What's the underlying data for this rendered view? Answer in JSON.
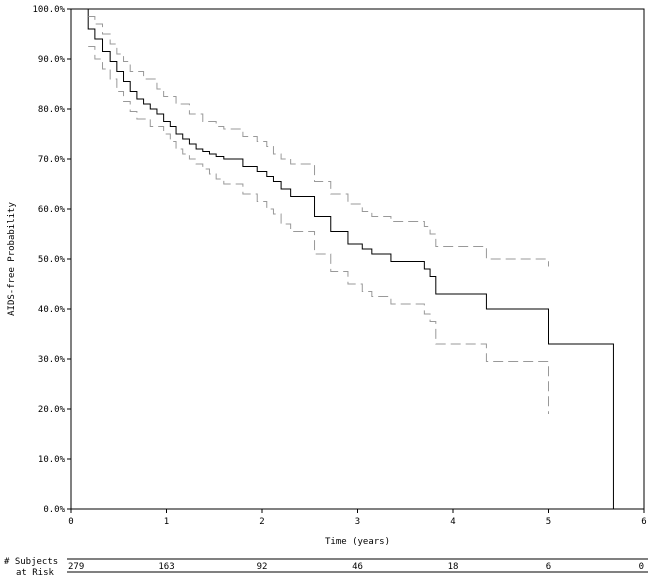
{
  "chart_data": {
    "type": "line",
    "title": "",
    "xlabel": "Time (years)",
    "ylabel": "AIDS-free Probability",
    "xlim": [
      0,
      6
    ],
    "ylim": [
      0,
      1
    ],
    "x_ticks": [
      0,
      1,
      2,
      3,
      4,
      5,
      6
    ],
    "x_tick_labels": [
      "0",
      "1",
      "2",
      "3",
      "4",
      "5",
      "6"
    ],
    "y_ticks": [
      0,
      0.1,
      0.2,
      0.3,
      0.4,
      0.5,
      0.6,
      0.7,
      0.8,
      0.9,
      1.0
    ],
    "y_tick_labels": [
      "0.0%",
      "10.0%",
      "20.0%",
      "30.0%",
      "40.0%",
      "50.0%",
      "60.0%",
      "70.0%",
      "80.0%",
      "90.0%",
      "100.0%"
    ],
    "grid": false,
    "legend": "none",
    "series": [
      {
        "style": "solid",
        "color": "#000000",
        "steps": [
          [
            0,
            1.0
          ],
          [
            0.18,
            0.96
          ],
          [
            0.25,
            0.94
          ],
          [
            0.33,
            0.915
          ],
          [
            0.41,
            0.895
          ],
          [
            0.48,
            0.875
          ],
          [
            0.55,
            0.855
          ],
          [
            0.62,
            0.835
          ],
          [
            0.69,
            0.82
          ],
          [
            0.76,
            0.81
          ],
          [
            0.83,
            0.8
          ],
          [
            0.9,
            0.79
          ],
          [
            0.97,
            0.775
          ],
          [
            1.04,
            0.765
          ],
          [
            1.1,
            0.75
          ],
          [
            1.17,
            0.74
          ],
          [
            1.24,
            0.73
          ],
          [
            1.31,
            0.72
          ],
          [
            1.38,
            0.715
          ],
          [
            1.45,
            0.71
          ],
          [
            1.52,
            0.705
          ],
          [
            1.6,
            0.7
          ],
          [
            1.8,
            0.685
          ],
          [
            1.95,
            0.675
          ],
          [
            2.05,
            0.665
          ],
          [
            2.12,
            0.655
          ],
          [
            2.2,
            0.64
          ],
          [
            2.3,
            0.625
          ],
          [
            2.55,
            0.585
          ],
          [
            2.72,
            0.555
          ],
          [
            2.9,
            0.53
          ],
          [
            3.05,
            0.52
          ],
          [
            3.15,
            0.51
          ],
          [
            3.35,
            0.495
          ],
          [
            3.7,
            0.48
          ],
          [
            3.76,
            0.465
          ],
          [
            3.82,
            0.43
          ],
          [
            4.35,
            0.4
          ],
          [
            5.0,
            0.33
          ],
          [
            5.68,
            0.0
          ]
        ]
      },
      {
        "style": "dashed",
        "color": "#999999",
        "steps": [
          [
            0.18,
            0.985
          ],
          [
            0.25,
            0.97
          ],
          [
            0.33,
            0.95
          ],
          [
            0.41,
            0.93
          ],
          [
            0.48,
            0.91
          ],
          [
            0.55,
            0.895
          ],
          [
            0.62,
            0.875
          ],
          [
            0.76,
            0.86
          ],
          [
            0.9,
            0.84
          ],
          [
            0.97,
            0.825
          ],
          [
            1.1,
            0.81
          ],
          [
            1.24,
            0.79
          ],
          [
            1.38,
            0.775
          ],
          [
            1.52,
            0.765
          ],
          [
            1.6,
            0.76
          ],
          [
            1.8,
            0.745
          ],
          [
            1.95,
            0.735
          ],
          [
            2.05,
            0.725
          ],
          [
            2.12,
            0.71
          ],
          [
            2.2,
            0.7
          ],
          [
            2.3,
            0.69
          ],
          [
            2.55,
            0.655
          ],
          [
            2.72,
            0.63
          ],
          [
            2.9,
            0.61
          ],
          [
            3.05,
            0.595
          ],
          [
            3.15,
            0.585
          ],
          [
            3.35,
            0.575
          ],
          [
            3.7,
            0.565
          ],
          [
            3.76,
            0.55
          ],
          [
            3.82,
            0.525
          ],
          [
            4.35,
            0.5
          ],
          [
            5.0,
            0.485
          ]
        ]
      },
      {
        "style": "dashed",
        "color": "#999999",
        "steps": [
          [
            0.18,
            0.925
          ],
          [
            0.25,
            0.9
          ],
          [
            0.33,
            0.88
          ],
          [
            0.41,
            0.86
          ],
          [
            0.48,
            0.835
          ],
          [
            0.55,
            0.815
          ],
          [
            0.62,
            0.795
          ],
          [
            0.69,
            0.78
          ],
          [
            0.83,
            0.765
          ],
          [
            0.97,
            0.75
          ],
          [
            1.04,
            0.735
          ],
          [
            1.1,
            0.72
          ],
          [
            1.17,
            0.71
          ],
          [
            1.24,
            0.7
          ],
          [
            1.31,
            0.69
          ],
          [
            1.38,
            0.68
          ],
          [
            1.45,
            0.67
          ],
          [
            1.52,
            0.66
          ],
          [
            1.6,
            0.65
          ],
          [
            1.8,
            0.63
          ],
          [
            1.95,
            0.615
          ],
          [
            2.05,
            0.6
          ],
          [
            2.12,
            0.59
          ],
          [
            2.2,
            0.57
          ],
          [
            2.3,
            0.555
          ],
          [
            2.55,
            0.51
          ],
          [
            2.72,
            0.475
          ],
          [
            2.9,
            0.45
          ],
          [
            3.05,
            0.435
          ],
          [
            3.15,
            0.425
          ],
          [
            3.35,
            0.41
          ],
          [
            3.7,
            0.39
          ],
          [
            3.76,
            0.375
          ],
          [
            3.82,
            0.33
          ],
          [
            4.35,
            0.295
          ],
          [
            5.0,
            0.19
          ]
        ]
      }
    ],
    "risk_table": {
      "label_line1": "# Subjects",
      "label_line2": "at Risk",
      "times": [
        0,
        1,
        2,
        3,
        4,
        5,
        6
      ],
      "counts": [
        "279",
        "163",
        "92",
        "46",
        "18",
        "6",
        "0"
      ]
    }
  }
}
